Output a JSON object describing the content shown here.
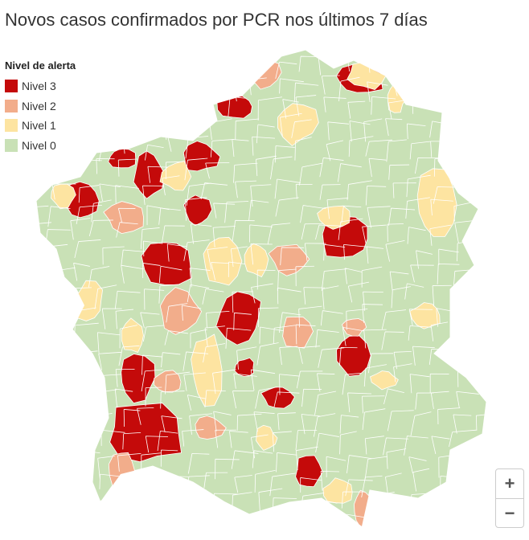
{
  "title": "Novos casos confirmados por PCR nos últimos 7 días",
  "legend": {
    "title": "Nivel de alerta",
    "items": [
      {
        "label": "Nivel 3",
        "color": "#c40a0a"
      },
      {
        "label": "Nivel 2",
        "color": "#f2ad8b"
      },
      {
        "label": "Nivel 1",
        "color": "#fde4a1"
      },
      {
        "label": "Nivel 0",
        "color": "#c9e1b6"
      }
    ]
  },
  "zoom": {
    "in": "+",
    "out": "−"
  }
}
